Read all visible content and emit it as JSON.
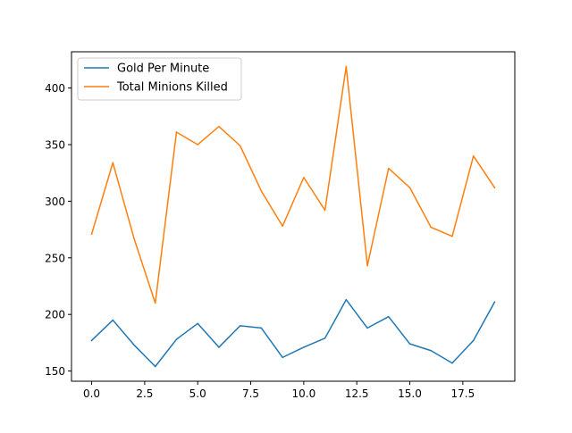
{
  "chart_data": {
    "type": "line",
    "title": "",
    "xlabel": "",
    "ylabel": "",
    "x": [
      0,
      1,
      2,
      3,
      4,
      5,
      6,
      7,
      8,
      9,
      10,
      11,
      12,
      13,
      14,
      15,
      16,
      17,
      18,
      19
    ],
    "xlim": [
      -0.95,
      19.95
    ],
    "ylim": [
      141,
      432
    ],
    "xticks": [
      0.0,
      2.5,
      5.0,
      7.5,
      10.0,
      12.5,
      15.0,
      17.5
    ],
    "xtick_labels": [
      "0.0",
      "2.5",
      "5.0",
      "7.5",
      "10.0",
      "12.5",
      "15.0",
      "17.5"
    ],
    "yticks": [
      150,
      200,
      250,
      300,
      350,
      400
    ],
    "ytick_labels": [
      "150",
      "200",
      "250",
      "300",
      "350",
      "400"
    ],
    "grid": false,
    "legend_position": "upper-left",
    "series": [
      {
        "name": "Gold Per Minute",
        "color": "#1f77b4",
        "values": [
          177,
          195,
          173,
          154,
          178,
          192,
          171,
          190,
          188,
          162,
          171,
          179,
          213,
          188,
          198,
          174,
          168,
          157,
          177,
          211
        ]
      },
      {
        "name": "Total Minions Killed",
        "color": "#ff7f0e",
        "values": [
          271,
          334,
          267,
          210,
          361,
          350,
          366,
          349,
          309,
          278,
          321,
          292,
          419,
          243,
          329,
          312,
          277,
          269,
          340,
          312
        ]
      }
    ]
  }
}
